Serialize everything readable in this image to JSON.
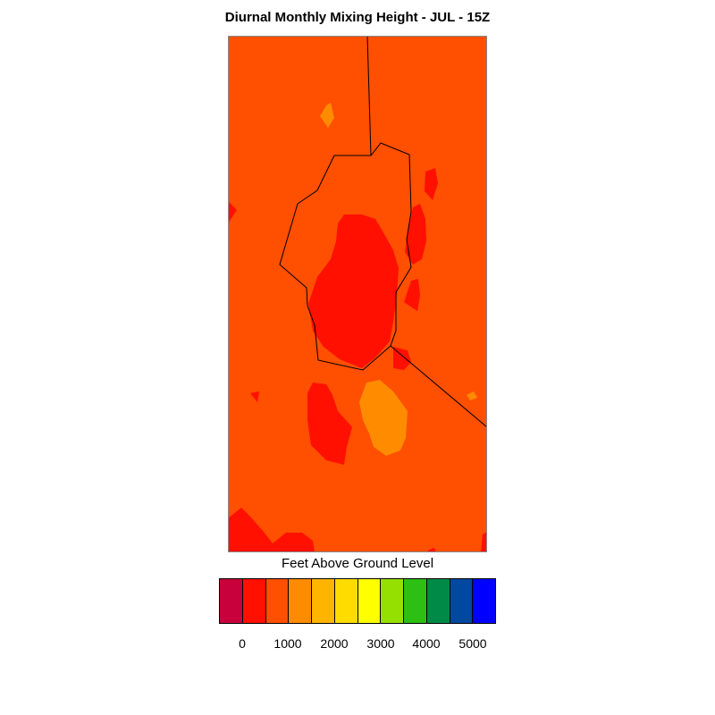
{
  "title": "Diurnal Monthly Mixing Height - JUL - 15Z",
  "legend": {
    "title": "Feet Above Ground Level",
    "colors": [
      "#c8003c",
      "#ff1000",
      "#ff4f00",
      "#ff8c00",
      "#ffb400",
      "#ffdc00",
      "#ffff00",
      "#96e000",
      "#2dbf14",
      "#008a48",
      "#0048a0",
      "#0000ff"
    ],
    "tick_labels": [
      "0",
      "1000",
      "2000",
      "3000",
      "4000",
      "5000"
    ]
  },
  "map_colors": {
    "background_field": "#ff4f00",
    "low_zone": "#ff1000",
    "high_zone": "#ff8c00",
    "boundary": "#000000"
  }
}
